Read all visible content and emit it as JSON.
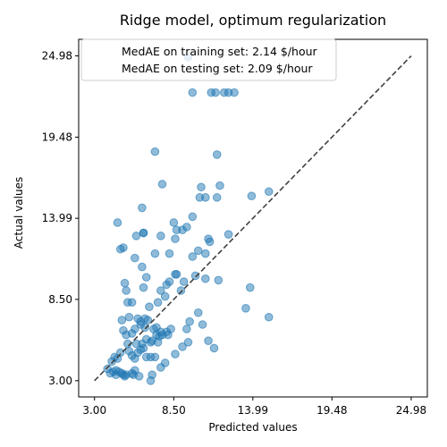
{
  "chart_data": {
    "type": "scatter",
    "title": "Ridge model, optimum regularization",
    "xlabel": "Predicted values",
    "ylabel": "Actual values",
    "xlim": [
      1.9,
      26.1
    ],
    "ylim": [
      1.9,
      26.1
    ],
    "x_ticks": [
      "3.00",
      "8.50",
      "13.99",
      "19.48",
      "24.98"
    ],
    "y_ticks": [
      "3.00",
      "8.50",
      "13.99",
      "19.48",
      "24.98"
    ],
    "x_tick_values": [
      3.0,
      8.5,
      13.99,
      19.48,
      24.98
    ],
    "y_tick_values": [
      3.0,
      8.5,
      13.99,
      19.48,
      24.98
    ],
    "legend": {
      "placement": "upper-left",
      "entries": [
        "MedAE on training set: 2.14 $/hour",
        "MedAE on testing set: 2.09 $/hour"
      ]
    },
    "reference_line": {
      "style": "dashed",
      "from": [
        3.0,
        3.0
      ],
      "to": [
        24.98,
        24.98
      ],
      "color": "#404040"
    },
    "point_color": "#1f77b4",
    "series": [
      {
        "points": [
          [
            3.9,
            3.8
          ],
          [
            4.1,
            3.5
          ],
          [
            4.3,
            3.6
          ],
          [
            4.5,
            3.4
          ],
          [
            4.5,
            3.7
          ],
          [
            4.7,
            3.6
          ],
          [
            4.9,
            3.5
          ],
          [
            5.0,
            3.4
          ],
          [
            5.2,
            3.4
          ],
          [
            5.1,
            3.3
          ],
          [
            5.6,
            3.5
          ],
          [
            5.8,
            3.7
          ],
          [
            5.7,
            3.4
          ],
          [
            6.1,
            3.3
          ],
          [
            6.9,
            3.0
          ],
          [
            7.0,
            3.4
          ],
          [
            4.2,
            4.3
          ],
          [
            4.4,
            4.6
          ],
          [
            4.6,
            4.5
          ],
          [
            4.8,
            4.9
          ],
          [
            5.4,
            5.0
          ],
          [
            5.3,
            5.5
          ],
          [
            5.6,
            4.7
          ],
          [
            5.8,
            4.5
          ],
          [
            6.0,
            4.9
          ],
          [
            6.2,
            5.1
          ],
          [
            6.4,
            5.2
          ],
          [
            6.6,
            4.6
          ],
          [
            6.9,
            4.6
          ],
          [
            7.2,
            4.6
          ],
          [
            7.6,
            3.9
          ],
          [
            5.9,
            5.5
          ],
          [
            6.3,
            5.5
          ],
          [
            6.6,
            5.8
          ],
          [
            6.9,
            5.6
          ],
          [
            7.0,
            5.7
          ],
          [
            7.3,
            6.1
          ],
          [
            7.5,
            6.0
          ],
          [
            7.7,
            6.1
          ],
          [
            7.4,
            5.6
          ],
          [
            5.0,
            6.4
          ],
          [
            5.2,
            6.1
          ],
          [
            5.6,
            6.2
          ],
          [
            5.8,
            6.5
          ],
          [
            6.2,
            6.8
          ],
          [
            6.5,
            6.6
          ],
          [
            6.7,
            7.1
          ],
          [
            6.5,
            7.2
          ],
          [
            7.1,
            6.5
          ],
          [
            7.3,
            6.6
          ],
          [
            7.6,
            6.3
          ],
          [
            8.0,
            6.3
          ],
          [
            8.1,
            6.1
          ],
          [
            8.3,
            6.5
          ],
          [
            4.9,
            7.1
          ],
          [
            5.4,
            7.3
          ],
          [
            6.0,
            7.2
          ],
          [
            6.2,
            7.0
          ],
          [
            5.3,
            8.3
          ],
          [
            5.6,
            8.3
          ],
          [
            6.8,
            8.0
          ],
          [
            7.4,
            8.3
          ],
          [
            7.6,
            9.1
          ],
          [
            7.9,
            8.7
          ],
          [
            5.2,
            9.1
          ],
          [
            5.1,
            9.6
          ],
          [
            6.4,
            9.3
          ],
          [
            6.6,
            10.0
          ],
          [
            6.3,
            10.7
          ],
          [
            7.2,
            11.6
          ],
          [
            8.0,
            9.5
          ],
          [
            8.2,
            9.7
          ],
          [
            8.6,
            10.2
          ],
          [
            8.7,
            10.2
          ],
          [
            9.0,
            9.1
          ],
          [
            9.2,
            9.7
          ],
          [
            9.6,
            7.0
          ],
          [
            9.4,
            6.5
          ],
          [
            9.5,
            5.6
          ],
          [
            9.1,
            5.3
          ],
          [
            8.6,
            4.8
          ],
          [
            7.9,
            4.2
          ],
          [
            10.2,
            7.6
          ],
          [
            10.5,
            6.8
          ],
          [
            10.9,
            5.7
          ],
          [
            11.3,
            5.2
          ],
          [
            11.6,
            9.8
          ],
          [
            10.7,
            9.9
          ],
          [
            10.0,
            10.1
          ],
          [
            9.8,
            11.4
          ],
          [
            10.2,
            11.8
          ],
          [
            10.7,
            11.6
          ],
          [
            11.0,
            12.4
          ],
          [
            10.9,
            12.6
          ],
          [
            12.3,
            12.9
          ],
          [
            8.6,
            12.6
          ],
          [
            8.2,
            11.6
          ],
          [
            7.6,
            12.8
          ],
          [
            8.7,
            13.2
          ],
          [
            8.5,
            13.7
          ],
          [
            9.1,
            13.2
          ],
          [
            9.4,
            13.4
          ],
          [
            9.8,
            14.1
          ],
          [
            11.5,
            15.4
          ],
          [
            11.7,
            16.2
          ],
          [
            10.3,
            15.4
          ],
          [
            10.7,
            15.4
          ],
          [
            10.4,
            16.1
          ],
          [
            7.7,
            16.3
          ],
          [
            6.4,
            13.0
          ],
          [
            6.3,
            14.7
          ],
          [
            5.0,
            12.0
          ],
          [
            5.9,
            12.8
          ],
          [
            6.4,
            13.0
          ],
          [
            4.6,
            13.7
          ],
          [
            4.8,
            11.9
          ],
          [
            5.8,
            11.3
          ],
          [
            13.8,
            9.3
          ],
          [
            13.5,
            7.9
          ],
          [
            15.1,
            7.3
          ],
          [
            13.9,
            15.5
          ],
          [
            15.1,
            15.8
          ],
          [
            7.2,
            18.5
          ],
          [
            11.5,
            18.3
          ],
          [
            9.5,
            24.9
          ],
          [
            9.8,
            22.5
          ],
          [
            11.1,
            22.5
          ],
          [
            11.4,
            22.5
          ],
          [
            12.0,
            22.5
          ],
          [
            12.3,
            22.5
          ],
          [
            12.7,
            22.5
          ]
        ]
      }
    ]
  }
}
